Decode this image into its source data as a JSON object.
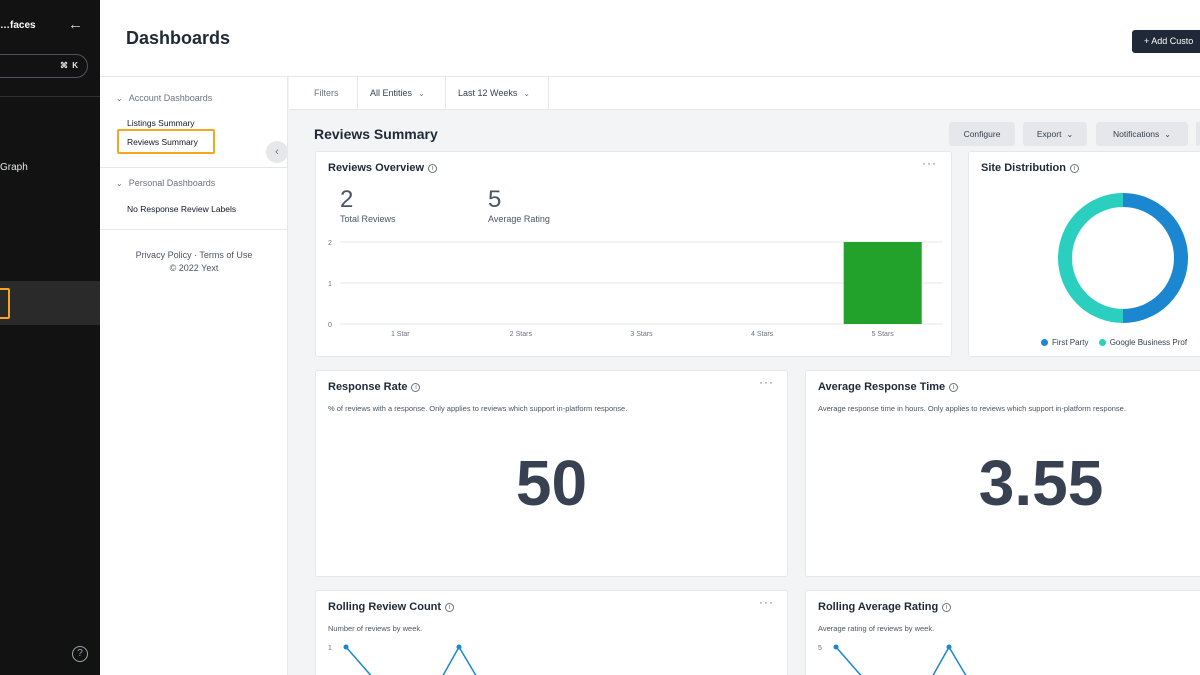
{
  "nav": {
    "title": "…faces",
    "search_kbd": "⌘ K",
    "graph_label": "Graph",
    "help_label": "?"
  },
  "header": {
    "title": "Dashboards",
    "add_button": "+ Add Custo"
  },
  "sidebar": {
    "groups": [
      {
        "label": "Account Dashboards",
        "items": [
          "Listings Summary",
          "Reviews Summary"
        ]
      },
      {
        "label": "Personal Dashboards",
        "items": [
          "No Response Review Labels"
        ]
      }
    ],
    "selected": "Reviews Summary",
    "footer_line1": "Privacy Policy · Terms of Use",
    "footer_line2": "© 2022 Yext"
  },
  "filters": {
    "label": "Filters",
    "entities": "All Entities",
    "period": "Last 12 Weeks"
  },
  "section": {
    "title": "Reviews Summary",
    "buttons": {
      "configure": "Configure",
      "export": "Export",
      "notifications": "Notifications"
    }
  },
  "reviews_overview": {
    "title": "Reviews Overview",
    "total_value": "2",
    "total_label": "Total Reviews",
    "avg_value": "5",
    "avg_label": "Average Rating",
    "chart_data": {
      "type": "bar",
      "categories": [
        "1 Star",
        "2 Stars",
        "3 Stars",
        "4 Stars",
        "5 Stars"
      ],
      "values": [
        0,
        0,
        0,
        0,
        2
      ],
      "ylim": [
        0,
        2
      ],
      "yticks": [
        "0",
        "1",
        "2"
      ],
      "color": "#22a22a"
    }
  },
  "site_distribution": {
    "title": "Site Distribution",
    "chart_data": {
      "type": "pie",
      "labels": [
        "First Party",
        "Google Business Profile"
      ],
      "legend_labels": [
        "First Party",
        "Google Business Prof"
      ],
      "values": [
        1,
        1
      ],
      "colors": [
        "#1a87d0",
        "#2bcfc0"
      ]
    }
  },
  "response_rate": {
    "title": "Response Rate",
    "subtitle": "% of reviews with a response. Only applies to reviews which support in-platform response.",
    "value": "50"
  },
  "avg_response_time": {
    "title": "Average Response Time",
    "subtitle": "Average response time in hours. Only applies to reviews which support in-platform response.",
    "value": "3.55"
  },
  "rolling_count": {
    "title": "Rolling Review Count",
    "subtitle": "Number of reviews by week.",
    "ytick_top": "1"
  },
  "rolling_rating": {
    "title": "Rolling Average Rating",
    "subtitle": "Average rating of reviews by week.",
    "ytick_top": "5"
  },
  "colors": {
    "line": "#1a87d0",
    "accent": "#f5a623"
  }
}
